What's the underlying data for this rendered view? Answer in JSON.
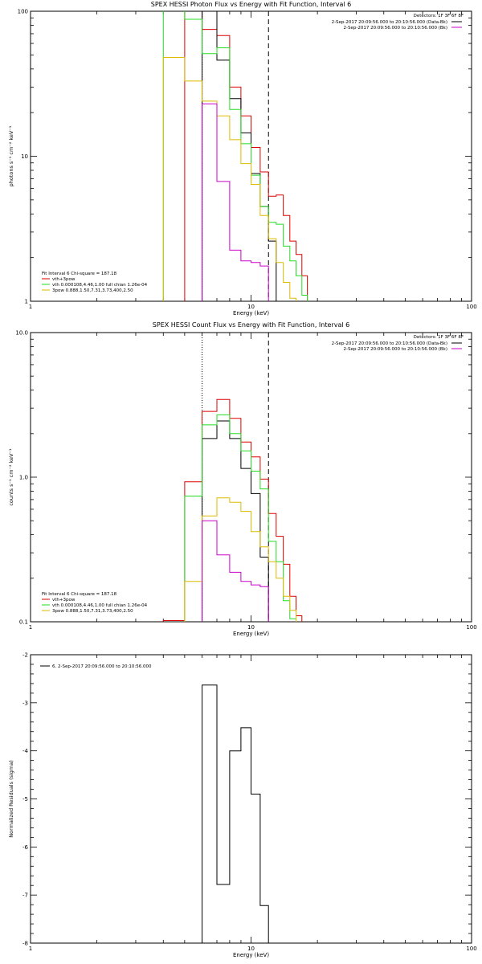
{
  "colors": {
    "axes": "#000000",
    "red": "#dd0000",
    "green": "#22dd22",
    "yellow": "#ddbb00",
    "magenta": "#cc00cc",
    "black": "#000000"
  },
  "chart_data": [
    {
      "type": "line",
      "step": true,
      "title": "SPEX HESSI Photon Flux vs Energy with Fit Function, Interval 6",
      "xlabel": "Energy (keV)",
      "ylabel": "photons s⁻¹ cm⁻² keV⁻¹",
      "xscale": "log",
      "yscale": "log",
      "xlim": [
        1,
        100
      ],
      "ylim": [
        1,
        100
      ],
      "xticks": [
        1,
        10,
        100
      ],
      "xtick_labels": [
        "1",
        "10",
        "100"
      ],
      "yticks": [
        1,
        10,
        100
      ],
      "ytick_labels": [
        "1",
        "10",
        "100"
      ],
      "detectors_label": "Detectors: 1F 3F 6F 8F",
      "legend_top_right": [
        {
          "label": "2-Sep-2017 20:09:56.000 to 20:10:56.000 (Data-Bk)",
          "color_key": "black"
        },
        {
          "label": "2-Sep-2017 20:09:56.000 to 20:10:56.000 (Bk)",
          "color_key": "magenta"
        }
      ],
      "fit_label": "Fit Interval 6   Chi-square = 187.18",
      "legend_bottom_left": [
        {
          "label": "vth+3pow",
          "color_key": "red"
        },
        {
          "label": "vth 0.000108,4.46,1.00  full chian 1.26e-04",
          "color_key": "green"
        },
        {
          "label": "3pow 0.888,1.50,7.31,3.73,400,2.50",
          "color_key": "yellow"
        }
      ],
      "ref_lines": [
        {
          "x": 6.0,
          "style": "dotted"
        },
        {
          "x": 12.0,
          "style": "dashed"
        }
      ],
      "edges": [
        4,
        5,
        6,
        7,
        8,
        9,
        10,
        11,
        12,
        13,
        14,
        15,
        16,
        17,
        18
      ],
      "series": [
        {
          "name": "vth+3pow",
          "color_key": "red",
          "values": [
            null,
            210,
            75,
            68,
            30,
            19,
            11.5,
            7.8,
            5.3,
            5.4,
            3.9,
            2.6,
            2.1,
            1.5
          ]
        },
        {
          "name": "Data-Bk",
          "color_key": "black",
          "values": [
            null,
            null,
            175,
            46,
            25,
            14.5,
            7.6,
            4.5,
            2.6,
            null,
            null,
            null,
            null,
            null
          ]
        },
        {
          "name": "vth",
          "color_key": "green",
          "values": [
            170,
            88,
            51,
            56,
            21,
            12.2,
            7.4,
            4.5,
            3.5,
            3.4,
            2.4,
            1.9,
            1.5,
            1.1
          ]
        },
        {
          "name": "3pow",
          "color_key": "yellow",
          "values": [
            48,
            33,
            24,
            19,
            13,
            8.9,
            6.4,
            3.9,
            2.7,
            1.85,
            1.35,
            1.05,
            null,
            null
          ]
        },
        {
          "name": "Bk",
          "color_key": "magenta",
          "values": [
            null,
            null,
            23,
            6.7,
            2.25,
            1.9,
            1.85,
            1.75,
            null,
            null,
            null,
            null,
            null,
            null
          ]
        }
      ]
    },
    {
      "type": "line",
      "step": true,
      "title": "SPEX HESSI Count Flux vs Energy with Fit Function, Interval 6",
      "xlabel": "Energy (keV)",
      "ylabel": "counts s⁻¹ cm⁻² keV⁻¹",
      "xscale": "log",
      "yscale": "log",
      "xlim": [
        1,
        100
      ],
      "ylim": [
        0.1,
        10
      ],
      "xticks": [
        1,
        10,
        100
      ],
      "xtick_labels": [
        "1",
        "10",
        "100"
      ],
      "yticks": [
        0.1,
        1,
        10
      ],
      "ytick_labels": [
        "0.1",
        "1.0",
        "10.0"
      ],
      "detectors_label": "Detectors: 1F 3F 6F 8F",
      "legend_top_right": [
        {
          "label": "2-Sep-2017 20:09:56.000 to 20:10:56.000 (Data-Bk)",
          "color_key": "black"
        },
        {
          "label": "2-Sep-2017 20:09:56.000 to 20:10:56.000 (Bk)",
          "color_key": "magenta"
        }
      ],
      "fit_label": "Fit Interval 6   Chi-square = 187.18",
      "legend_bottom_left": [
        {
          "label": "vth+3pow",
          "color_key": "red"
        },
        {
          "label": "vth 0.000108,4.46,1.00  full chian 1.26e-04",
          "color_key": "green"
        },
        {
          "label": "3pow 0.888,1.50,7.31,3.73,400,2.50",
          "color_key": "yellow"
        }
      ],
      "ref_lines": [
        {
          "x": 6.0,
          "style": "dotted"
        },
        {
          "x": 12.0,
          "style": "dashed"
        }
      ],
      "edges": [
        4,
        5,
        6,
        7,
        8,
        9,
        10,
        11,
        12,
        13,
        14,
        15,
        16,
        17,
        18,
        19,
        20
      ],
      "series": [
        {
          "name": "vth+3pow",
          "color_key": "red",
          "values": [
            0.102,
            0.93,
            2.85,
            3.45,
            2.55,
            1.75,
            1.38,
            0.97,
            0.56,
            0.39,
            0.25,
            0.15,
            0.11,
            null,
            null,
            null
          ]
        },
        {
          "name": "Data-Bk",
          "color_key": "black",
          "values": [
            null,
            null,
            1.85,
            2.45,
            1.85,
            1.15,
            0.77,
            0.28,
            null,
            null,
            null,
            null,
            null,
            null,
            null,
            null
          ]
        },
        {
          "name": "vth",
          "color_key": "green",
          "values": [
            null,
            0.74,
            2.3,
            2.7,
            2.0,
            1.52,
            1.1,
            0.83,
            0.36,
            0.26,
            0.14,
            0.105,
            null,
            null,
            null,
            null
          ]
        },
        {
          "name": "3pow",
          "color_key": "yellow",
          "values": [
            null,
            0.19,
            0.54,
            0.72,
            0.67,
            0.58,
            0.42,
            0.33,
            0.26,
            0.2,
            0.15,
            0.12,
            null,
            null,
            null,
            null
          ]
        },
        {
          "name": "Bk",
          "color_key": "magenta",
          "values": [
            null,
            null,
            0.5,
            0.29,
            0.22,
            0.19,
            0.18,
            0.175,
            null,
            null,
            null,
            null,
            null,
            null,
            null,
            null
          ]
        }
      ]
    },
    {
      "type": "line",
      "step": true,
      "title": "",
      "xlabel": "Energy (keV)",
      "ylabel": "Normalized Residuals (sigma)",
      "xscale": "log",
      "yscale": "linear",
      "xlim": [
        1,
        100
      ],
      "ylim": [
        -8,
        -2
      ],
      "xticks": [
        1,
        10,
        100
      ],
      "xtick_labels": [
        "1",
        "10",
        "100"
      ],
      "yticks": [
        -8,
        -7,
        -6,
        -5,
        -4,
        -3,
        -2
      ],
      "ytick_labels": [
        "-8",
        "-7",
        "-6",
        "-5",
        "-4",
        "-3",
        "-2"
      ],
      "legend_top_left": "6.  2-Sep-2017 20:09:56.000 to 20:10:56.000",
      "edges": [
        6,
        7,
        8,
        9,
        10,
        11,
        12
      ],
      "series": [
        {
          "color_key": "black",
          "values": [
            -2.63,
            -6.78,
            -4.0,
            -3.52,
            -4.9,
            -7.22
          ]
        }
      ]
    }
  ]
}
